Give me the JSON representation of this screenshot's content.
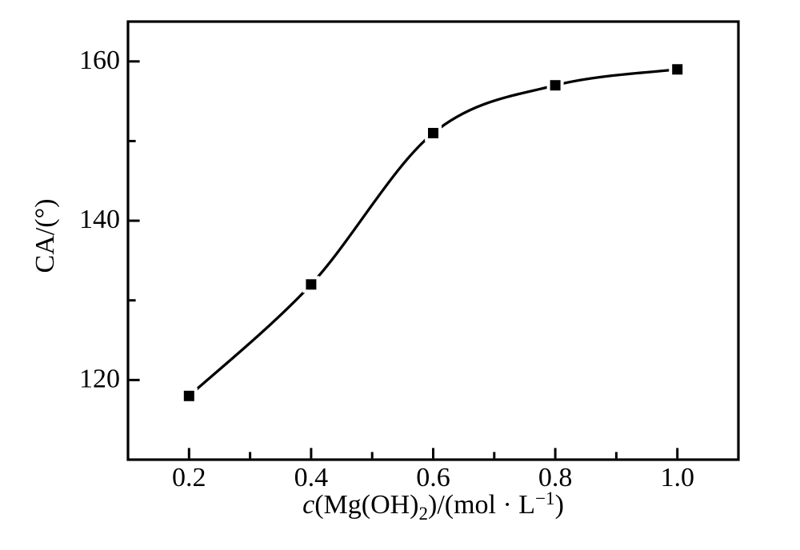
{
  "figure": {
    "background": "#ffffff"
  },
  "chart_data": {
    "type": "line",
    "title": "",
    "curve": "smooth",
    "marker": "filled-square",
    "line_color": "#000000",
    "marker_color": "#000000",
    "text_color": "#000000",
    "background": "#ffffff",
    "grid": false,
    "legend": false,
    "x": [
      0.2,
      0.4,
      0.6,
      0.8,
      1.0
    ],
    "y": [
      118,
      132,
      151,
      157,
      159
    ],
    "xlim": [
      0.1,
      1.1
    ],
    "ylim": [
      110,
      165
    ],
    "xlabel": "c(Mg(OH)2)/(mol·L−1)",
    "ylabel": "CA/(°)",
    "xlabel_parts": [
      {
        "text": "c",
        "style": "italic"
      },
      {
        "text": "(Mg(OH)",
        "style": "normal"
      },
      {
        "text": "2",
        "style": "subscript"
      },
      {
        "text": ")/(mol · L",
        "style": "normal"
      },
      {
        "text": "−1",
        "style": "superscript"
      },
      {
        "text": ")",
        "style": "normal"
      }
    ],
    "x_major_ticks": [
      0.2,
      0.4,
      0.6,
      0.8,
      1.0
    ],
    "x_tick_labels": [
      "0.2",
      "0.4",
      "0.6",
      "0.8",
      "1.0"
    ],
    "x_minor_ticks": [
      0.3,
      0.5,
      0.7,
      0.9
    ],
    "y_major_ticks": [
      120,
      140,
      160
    ],
    "y_tick_labels": [
      "120",
      "140",
      "160"
    ],
    "y_minor_ticks": [
      130,
      150
    ]
  }
}
